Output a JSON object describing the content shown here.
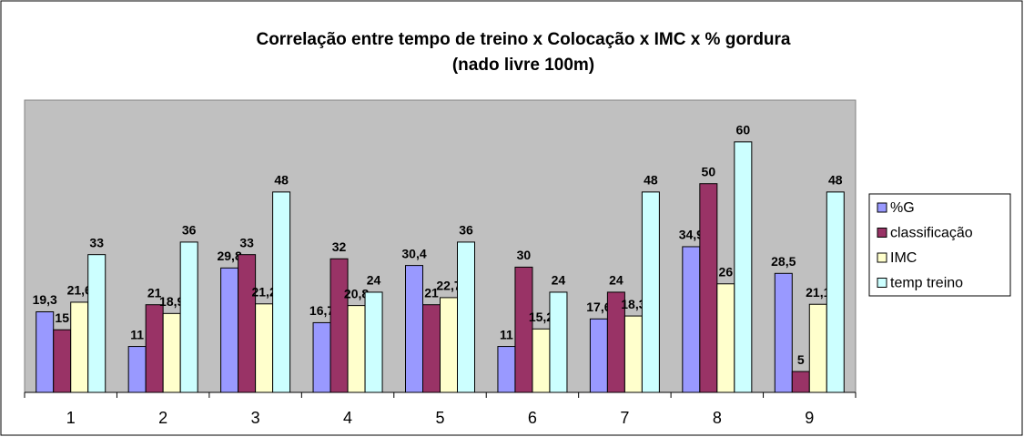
{
  "chart_data": {
    "type": "bar",
    "title": "Correlação entre tempo de treino x Colocação x IMC x % gordura",
    "subtitle": "(nado livre 100m)",
    "categories": [
      "1",
      "2",
      "3",
      "4",
      "5",
      "6",
      "7",
      "8",
      "9"
    ],
    "series": [
      {
        "name": "%G",
        "color": "#9999ff",
        "values": [
          19.3,
          11,
          29.8,
          16.7,
          30.4,
          11,
          17.6,
          34.9,
          28.5
        ],
        "value_labels": [
          "19,3",
          "11",
          "29,8",
          "16,7",
          "30,4",
          "11",
          "17,6",
          "34,9",
          "28,5"
        ]
      },
      {
        "name": "classificação",
        "color": "#993366",
        "values": [
          15,
          21,
          33,
          32,
          21,
          30,
          24,
          50,
          5
        ]
      },
      {
        "name": "IMC",
        "color": "#ffffcc",
        "values": [
          21.6,
          18.9,
          21.2,
          20.8,
          22.7,
          15.2,
          18.3,
          26,
          21.1
        ],
        "value_labels": [
          "21,6",
          "18,9",
          "21,2",
          "20,8",
          "22,7",
          "15,2",
          "18,3",
          "26",
          "21,1"
        ]
      },
      {
        "name": "temp treino",
        "color": "#ccffff",
        "values": [
          33,
          36,
          48,
          24,
          36,
          24,
          48,
          60,
          48
        ]
      }
    ],
    "ylim": [
      0,
      70
    ],
    "grid": false,
    "legend": "right",
    "plot_background": "#c0c0c0"
  }
}
